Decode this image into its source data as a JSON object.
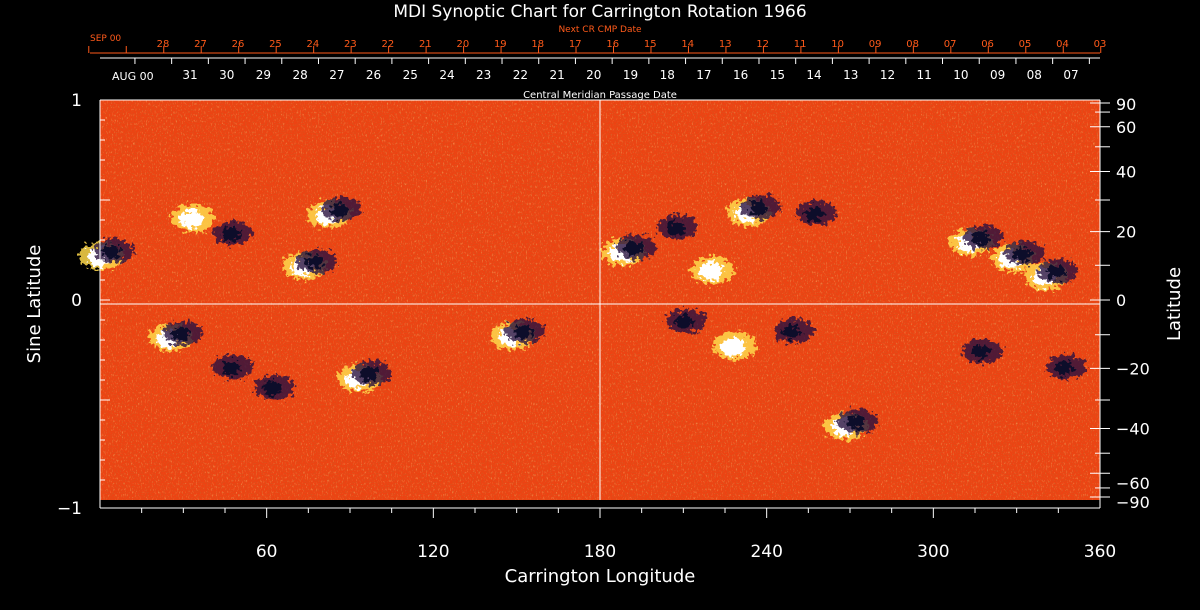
{
  "chart_data": {
    "type": "heatmap",
    "title": "MDI Synoptic Chart for Carrington Rotation 1966",
    "xlabel": "Carrington Longitude",
    "ylabel_left": "Sine Latitude",
    "ylabel_right": "Latitude",
    "xlim": [
      0,
      360
    ],
    "ylim": [
      -1,
      1
    ],
    "x_ticks": [
      "60",
      "120",
      "180",
      "240",
      "300",
      "360"
    ],
    "x_tick_values": [
      60,
      120,
      180,
      240,
      300,
      360
    ],
    "y_left_ticks": [
      "1",
      "0",
      "−1"
    ],
    "y_left_tick_values": [
      1,
      0,
      -1
    ],
    "y_right_ticks": [
      "90",
      "60",
      "40",
      "20",
      "0",
      "−20",
      "−40",
      "−60",
      "−90"
    ],
    "y_right_tick_values": [
      90,
      60,
      40,
      20,
      0,
      -20,
      -40,
      -60,
      -90
    ],
    "grid": "center cross lines at longitude 180 and sine latitude 0",
    "next_cr_axis": {
      "label": "Next CR CMP Date",
      "month": "SEP 00",
      "dates": [
        "28",
        "27",
        "26",
        "25",
        "24",
        "23",
        "22",
        "21",
        "20",
        "19",
        "18",
        "17",
        "16",
        "15",
        "14",
        "13",
        "12",
        "11",
        "10",
        "09",
        "08",
        "07",
        "06",
        "05",
        "04",
        "03"
      ]
    },
    "cmp_axis": {
      "label": "Central Meridian Passage Date",
      "month": "AUG 00",
      "dates": [
        "31",
        "30",
        "29",
        "28",
        "27",
        "26",
        "25",
        "24",
        "23",
        "22",
        "21",
        "20",
        "19",
        "18",
        "17",
        "16",
        "15",
        "14",
        "13",
        "12",
        "11",
        "10",
        "09",
        "08",
        "07"
      ]
    },
    "colors": {
      "background_field": "#f04010",
      "positive_polarity": "#ffffff",
      "negative_polarity": "#101040",
      "axis_accent": "#ff5a1a"
    },
    "active_regions": [
      {
        "lon": 2,
        "sinlat": 0.23,
        "polarity": "mixed"
      },
      {
        "lon": 35,
        "sinlat": 0.42,
        "polarity": "positive"
      },
      {
        "lon": 45,
        "sinlat": 0.32,
        "polarity": "negative"
      },
      {
        "lon": 75,
        "sinlat": 0.18,
        "polarity": "mixed"
      },
      {
        "lon": 84,
        "sinlat": 0.44,
        "polarity": "mixed"
      },
      {
        "lon": 27,
        "sinlat": -0.18,
        "polarity": "mixed"
      },
      {
        "lon": 45,
        "sinlat": -0.35,
        "polarity": "negative"
      },
      {
        "lon": 60,
        "sinlat": -0.45,
        "polarity": "negative"
      },
      {
        "lon": 95,
        "sinlat": -0.38,
        "polarity": "mixed"
      },
      {
        "lon": 150,
        "sinlat": -0.17,
        "polarity": "mixed"
      },
      {
        "lon": 190,
        "sinlat": 0.25,
        "polarity": "mixed"
      },
      {
        "lon": 205,
        "sinlat": 0.35,
        "polarity": "negative"
      },
      {
        "lon": 222,
        "sinlat": 0.16,
        "polarity": "positive"
      },
      {
        "lon": 235,
        "sinlat": 0.45,
        "polarity": "mixed"
      },
      {
        "lon": 255,
        "sinlat": 0.42,
        "polarity": "negative"
      },
      {
        "lon": 315,
        "sinlat": 0.3,
        "polarity": "mixed"
      },
      {
        "lon": 330,
        "sinlat": 0.22,
        "polarity": "mixed"
      },
      {
        "lon": 342,
        "sinlat": 0.13,
        "polarity": "mixed"
      },
      {
        "lon": 208,
        "sinlat": -0.12,
        "polarity": "negative"
      },
      {
        "lon": 230,
        "sinlat": -0.22,
        "polarity": "positive"
      },
      {
        "lon": 247,
        "sinlat": -0.17,
        "polarity": "negative"
      },
      {
        "lon": 270,
        "sinlat": -0.62,
        "polarity": "mixed"
      },
      {
        "lon": 315,
        "sinlat": -0.27,
        "polarity": "negative"
      },
      {
        "lon": 345,
        "sinlat": -0.35,
        "polarity": "negative"
      }
    ]
  }
}
